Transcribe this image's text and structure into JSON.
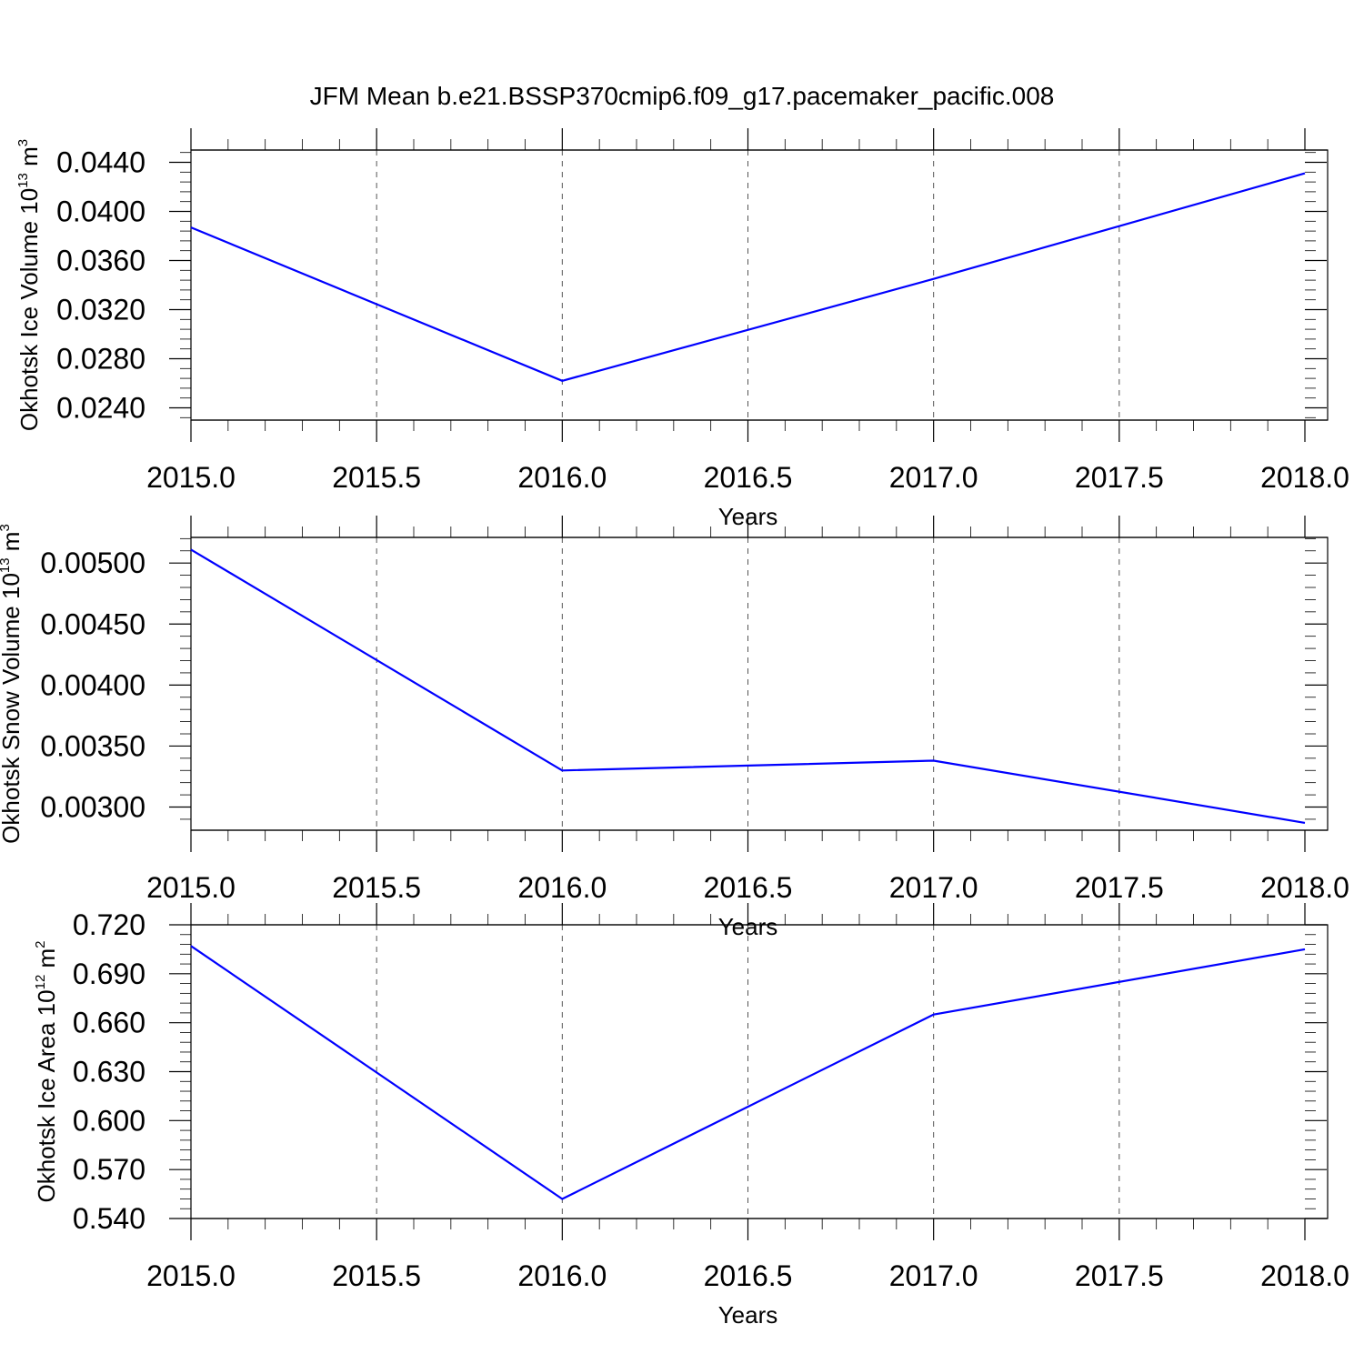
{
  "chart_data": [
    {
      "type": "line",
      "title": "JFM Mean b.e21.BSSP370cmip6.f09_g17.pacemaker_pacific.008",
      "xlabel": "Years",
      "ylabel": "Okhotsk Ice Volume 10",
      "ylabel_sup": "13",
      "ylabel_unit": "m",
      "ylabel_unit_sup": "3",
      "x": [
        2015.0,
        2016.0,
        2017.0,
        2018.0
      ],
      "series": [
        {
          "values": [
            0.0387,
            0.0262,
            0.0345,
            0.0431
          ]
        }
      ],
      "xlim": [
        2015.0,
        2018.0
      ],
      "ylim": [
        0.023,
        0.045
      ],
      "xticks": [
        2015.0,
        2015.5,
        2016.0,
        2016.5,
        2017.0,
        2017.5,
        2018.0
      ],
      "xtick_labels": [
        "2015.0",
        "2015.5",
        "2016.0",
        "2016.5",
        "2017.0",
        "2017.5",
        "2018.0"
      ],
      "yticks": [
        0.024,
        0.028,
        0.032,
        0.036,
        0.04,
        0.044
      ],
      "ytick_labels": [
        "0.0240",
        "0.0280",
        "0.0320",
        "0.0360",
        "0.0400",
        "0.0440"
      ],
      "ymajor_step": 0.004,
      "yminor_per_major": 5,
      "xminor_step": 0.1,
      "grid": "vertical dashed at major x ticks"
    },
    {
      "type": "line",
      "xlabel": "Years",
      "ylabel": "Okhotsk Snow Volume 10",
      "ylabel_sup": "13",
      "ylabel_unit": "m",
      "ylabel_unit_sup": "3",
      "x": [
        2015.0,
        2016.0,
        2017.0,
        2018.0
      ],
      "series": [
        {
          "values": [
            0.00511,
            0.0033,
            0.00338,
            0.00287
          ]
        }
      ],
      "xlim": [
        2015.0,
        2018.0
      ],
      "ylim": [
        0.00281,
        0.00521
      ],
      "xticks": [
        2015.0,
        2015.5,
        2016.0,
        2016.5,
        2017.0,
        2017.5,
        2018.0
      ],
      "xtick_labels": [
        "2015.0",
        "2015.5",
        "2016.0",
        "2016.5",
        "2017.0",
        "2017.5",
        "2018.0"
      ],
      "yticks": [
        0.003,
        0.0035,
        0.004,
        0.0045,
        0.005
      ],
      "ytick_labels": [
        "0.00300",
        "0.00350",
        "0.00400",
        "0.00450",
        "0.00500"
      ],
      "ymajor_step": 0.0005,
      "yminor_per_major": 5,
      "xminor_step": 0.1,
      "grid": "vertical dashed at major x ticks"
    },
    {
      "type": "line",
      "xlabel": "Years",
      "ylabel": "Okhotsk Ice Area 10",
      "ylabel_sup": "12",
      "ylabel_unit": "m",
      "ylabel_unit_sup": "2",
      "x": [
        2015.0,
        2016.0,
        2017.0,
        2018.0
      ],
      "series": [
        {
          "values": [
            0.707,
            0.552,
            0.665,
            0.705
          ]
        }
      ],
      "xlim": [
        2015.0,
        2018.0
      ],
      "ylim": [
        0.54,
        0.72
      ],
      "xticks": [
        2015.0,
        2015.5,
        2016.0,
        2016.5,
        2017.0,
        2017.5,
        2018.0
      ],
      "xtick_labels": [
        "2015.0",
        "2015.5",
        "2016.0",
        "2016.5",
        "2017.0",
        "2017.5",
        "2018.0"
      ],
      "yticks": [
        0.54,
        0.57,
        0.6,
        0.63,
        0.66,
        0.69,
        0.72
      ],
      "ytick_labels": [
        "0.540",
        "0.570",
        "0.600",
        "0.630",
        "0.660",
        "0.690",
        "0.720"
      ],
      "ymajor_step": 0.03,
      "yminor_per_major": 5,
      "xminor_step": 0.1,
      "grid": "vertical dashed at major x ticks"
    }
  ],
  "colors": {
    "series": "#0000ff",
    "frame": "#000000",
    "grid": "#555555",
    "background": "#ffffff"
  }
}
